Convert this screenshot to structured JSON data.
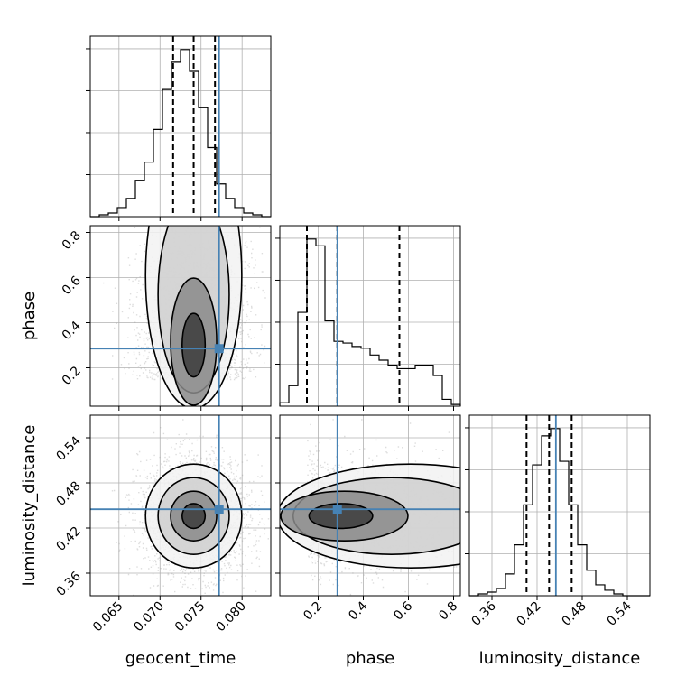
{
  "chart_data": {
    "type": "corner",
    "truth_color": "#4682b4",
    "variables": [
      {
        "name": "geocent_time",
        "range": [
          0.0615,
          0.0835
        ],
        "ticks": [
          "0.065",
          "0.070",
          "0.075",
          "0.080"
        ],
        "tick_values": [
          0.065,
          0.07,
          0.075,
          0.08
        ],
        "truth": 0.0772,
        "quantiles": [
          0.0716,
          0.0741,
          0.0767
        ],
        "hist_edges_start": 0.0615,
        "hist_bin_width": 0.0011,
        "hist_counts": [
          0,
          1,
          2,
          5,
          10,
          20,
          30,
          48,
          70,
          85,
          92,
          80,
          60,
          38,
          18,
          10,
          5,
          2,
          1,
          0
        ]
      },
      {
        "name": "phase",
        "range": [
          0.03,
          0.83
        ],
        "ticks": [
          "0.2",
          "0.4",
          "0.6",
          "0.8"
        ],
        "tick_values": [
          0.2,
          0.4,
          0.6,
          0.8
        ],
        "truth": 0.285,
        "quantiles": [
          0.15,
          0.285,
          0.56
        ],
        "hist_edges_start": 0.03,
        "hist_bin_width": 0.04,
        "hist_counts": [
          2,
          12,
          55,
          98,
          94,
          50,
          38,
          37,
          35,
          34,
          30,
          27,
          24,
          22,
          22,
          24,
          24,
          18,
          4,
          1
        ]
      },
      {
        "name": "luminosity_distance",
        "range": [
          0.33,
          0.57
        ],
        "ticks": [
          "0.36",
          "0.42",
          "0.48",
          "0.54"
        ],
        "tick_values": [
          0.36,
          0.42,
          0.48,
          0.54
        ],
        "truth": 0.445,
        "quantiles": [
          0.406,
          0.436,
          0.466
        ],
        "hist_edges_start": 0.33,
        "hist_bin_width": 0.012,
        "hist_counts": [
          0,
          1,
          2,
          4,
          12,
          28,
          50,
          72,
          88,
          92,
          74,
          50,
          28,
          14,
          6,
          3,
          1,
          0,
          0,
          0
        ]
      }
    ]
  }
}
